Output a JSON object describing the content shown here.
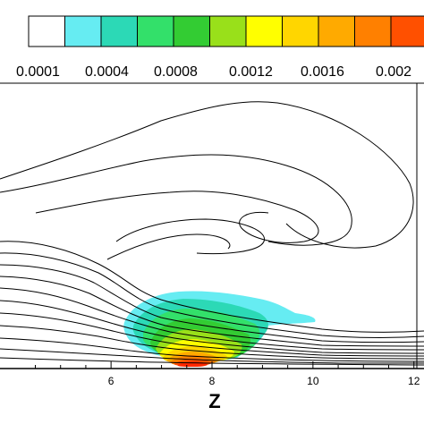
{
  "chart_data": {
    "type": "heatmap",
    "title": "",
    "xlabel": "Z",
    "ylabel": "",
    "xlim": [
      3.8,
      12.2
    ],
    "x_ticks": [
      "6",
      "8",
      "10",
      "12"
    ],
    "legend": {
      "placement": "top",
      "levels": [
        0.0001,
        0.0002,
        0.0003,
        0.0004,
        0.0006,
        0.0008,
        0.001,
        0.0012,
        0.0014,
        0.0016,
        0.0018,
        0.002
      ],
      "colors": [
        "#ffffff",
        "#66ecf2",
        "#2cd9b6",
        "#33e06a",
        "#33cc33",
        "#99e01a",
        "#ffff00",
        "#ffd600",
        "#ffaa00",
        "#ff8000",
        "#ff5000",
        "#ff2800"
      ],
      "labels": [
        "0.0001",
        "0.0004",
        "0.0008",
        "0.0012",
        "0.0016",
        "0.002"
      ]
    },
    "contour_fill": {
      "description_levels": "concentration",
      "center_x": 7.8,
      "bands": [
        "#66ecf2",
        "#2cd9b6",
        "#33e06a",
        "#33cc33",
        "#99e01a",
        "#ffff00",
        "#ffd600",
        "#ffaa00",
        "#ff8000",
        "#ff5000",
        "#ff2800"
      ]
    }
  }
}
